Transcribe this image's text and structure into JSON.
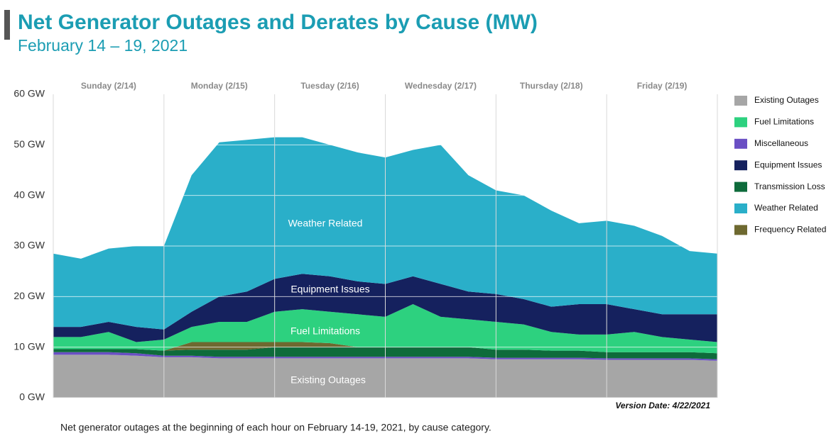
{
  "chart_data": {
    "type": "stacked_area",
    "title": "Net Generator Outages and Derates by Cause (MW)",
    "subtitle": "February 14 – 19, 2021",
    "caption": "Net generator outages at the beginning of each hour on February 14-19, 2021, by cause category.",
    "version_note": "Version Date: 4/22/2021",
    "annotations": [
      "Weather Related",
      "Equipment Issues",
      "Fuel Limitations",
      "Existing Outages"
    ],
    "categories": [
      null,
      null,
      "Sunday (2/14)",
      null,
      null,
      null,
      "Monday (2/15)",
      null,
      null,
      null,
      "Tuesday (2/16)",
      null,
      null,
      null,
      "Wednesday (2/17)",
      null,
      null,
      null,
      "Thursday (2/18)",
      null,
      null,
      null,
      "Friday (2/19)",
      null,
      null
    ],
    "ylim": [
      0,
      60
    ],
    "yticks": [
      {
        "value": 0,
        "label": "0 GW"
      },
      {
        "value": 10,
        "label": "10 GW"
      },
      {
        "value": 20,
        "label": "20 GW"
      },
      {
        "value": 30,
        "label": "30 GW"
      },
      {
        "value": 40,
        "label": "40 GW"
      },
      {
        "value": 50,
        "label": "50 GW"
      },
      {
        "value": 60,
        "label": "60 GW"
      }
    ],
    "grid": true,
    "legend": "right",
    "series": [
      {
        "name": "Existing Outages",
        "color": "#a6a6a6",
        "values": [
          8.5,
          8.5,
          8.5,
          8.3,
          8.0,
          8.0,
          7.8,
          7.8,
          7.8,
          7.8,
          7.8,
          7.8,
          7.8,
          7.8,
          7.8,
          7.8,
          7.6,
          7.6,
          7.6,
          7.6,
          7.5,
          7.5,
          7.5,
          7.5,
          7.3
        ]
      },
      {
        "name": "Fuel  Limitations",
        "color": "#2dd17f",
        "values": [
          2.4,
          2.4,
          3.4,
          1.4,
          2.2,
          3.0,
          4.0,
          4.0,
          6.0,
          6.5,
          6.2,
          6.5,
          6.0,
          8.5,
          6.0,
          5.5,
          5.5,
          5.0,
          3.7,
          3.2,
          3.5,
          4.0,
          3.0,
          2.5,
          2.2
        ]
      },
      {
        "name": "Miscellaneous",
        "color": "#6a4fc4",
        "values": [
          0.5,
          0.5,
          0.5,
          0.5,
          0.3,
          0.3,
          0.3,
          0.3,
          0.3,
          0.3,
          0.3,
          0.3,
          0.3,
          0.3,
          0.3,
          0.3,
          0.3,
          0.3,
          0.3,
          0.3,
          0.3,
          0.3,
          0.3,
          0.3,
          0.3
        ]
      },
      {
        "name": "Equipment Issues",
        "color": "#15215e",
        "values": [
          2,
          2,
          2,
          3,
          2,
          3,
          5,
          6,
          6.5,
          7,
          7,
          6.5,
          6.5,
          5.5,
          6.5,
          5.5,
          5.5,
          5,
          5,
          6,
          6,
          4.5,
          4.5,
          5,
          5.5
        ]
      },
      {
        "name": "Transmission Loss",
        "color": "#0e6b3b",
        "values": [
          0.6,
          0.6,
          0.6,
          0.8,
          1.0,
          1.2,
          1.4,
          1.4,
          1.9,
          1.9,
          1.9,
          1.9,
          1.9,
          1.9,
          1.9,
          1.9,
          1.6,
          1.6,
          1.4,
          1.4,
          1.2,
          1.2,
          1.2,
          1.2,
          1.2
        ]
      },
      {
        "name": "Weather Related",
        "color": "#2aafc9",
        "values": [
          14.5,
          13.5,
          14.5,
          16,
          16.5,
          27,
          30.5,
          30,
          28,
          27,
          26,
          25.5,
          25,
          25,
          27.5,
          23,
          20.5,
          20.5,
          19,
          16,
          16.5,
          16.5,
          15.5,
          12.5,
          12
        ]
      },
      {
        "name": "Frequency Related",
        "color": "#6e6930",
        "values": [
          0,
          0,
          0,
          0,
          0,
          1.5,
          1.5,
          1.5,
          1.0,
          1.0,
          0.8,
          0,
          0,
          0,
          0,
          0,
          0,
          0,
          0,
          0,
          0,
          0,
          0,
          0,
          0
        ]
      }
    ]
  }
}
